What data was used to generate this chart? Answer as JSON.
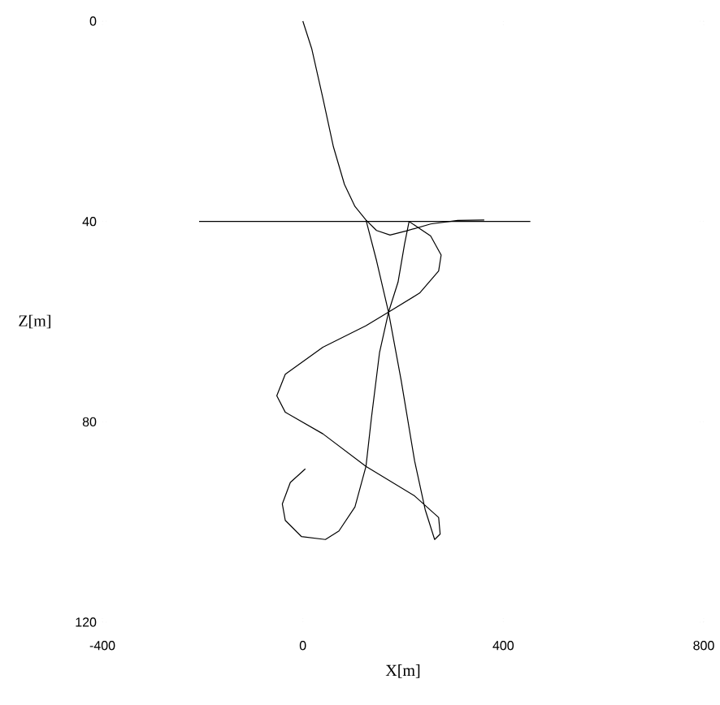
{
  "chart_data": {
    "type": "line",
    "xlabel": "X[m]",
    "ylabel": "Z[m]",
    "xlim": [
      -400,
      800
    ],
    "ylim": [
      120,
      0
    ],
    "xticks": [
      -400,
      0,
      400,
      800
    ],
    "yticks": [
      0,
      40,
      80,
      120
    ],
    "series": [
      {
        "color": "#000000",
        "x": [
          -207,
          454
        ],
        "values": [
          40,
          40
        ]
      },
      {
        "color": "#000000",
        "x": [
          0,
          18,
          40,
          61,
          83,
          104,
          126,
          147,
          174,
          206,
          255,
          309,
          362,
          null,
          126,
          147,
          171,
          196,
          223,
          244,
          263,
          274,
          271,
          223,
          126,
          40,
          -35,
          -52,
          -35,
          40,
          126,
          171,
          233,
          271,
          276,
          255,
          212,
          203,
          190,
          171,
          153,
          137,
          126,
          104,
          72,
          45,
          -3,
          -35,
          -41,
          -25,
          5
        ],
        "values": [
          0,
          5.6,
          15.4,
          25.1,
          32.6,
          37,
          39.7,
          41.8,
          42.7,
          41.9,
          40.5,
          39.8,
          39.7,
          null,
          39.7,
          47.8,
          58.1,
          71.6,
          87.8,
          97.5,
          103.5,
          102.4,
          99.1,
          94.8,
          88.9,
          82.4,
          78.1,
          74.8,
          70.5,
          65.1,
          60.8,
          58.1,
          54.3,
          49.9,
          46.7,
          42.9,
          40,
          44.5,
          52.1,
          58.1,
          66.2,
          79.1,
          88.9,
          97,
          101.8,
          103.5,
          102.9,
          99.7,
          96.4,
          92.1,
          89.4
        ]
      }
    ]
  }
}
